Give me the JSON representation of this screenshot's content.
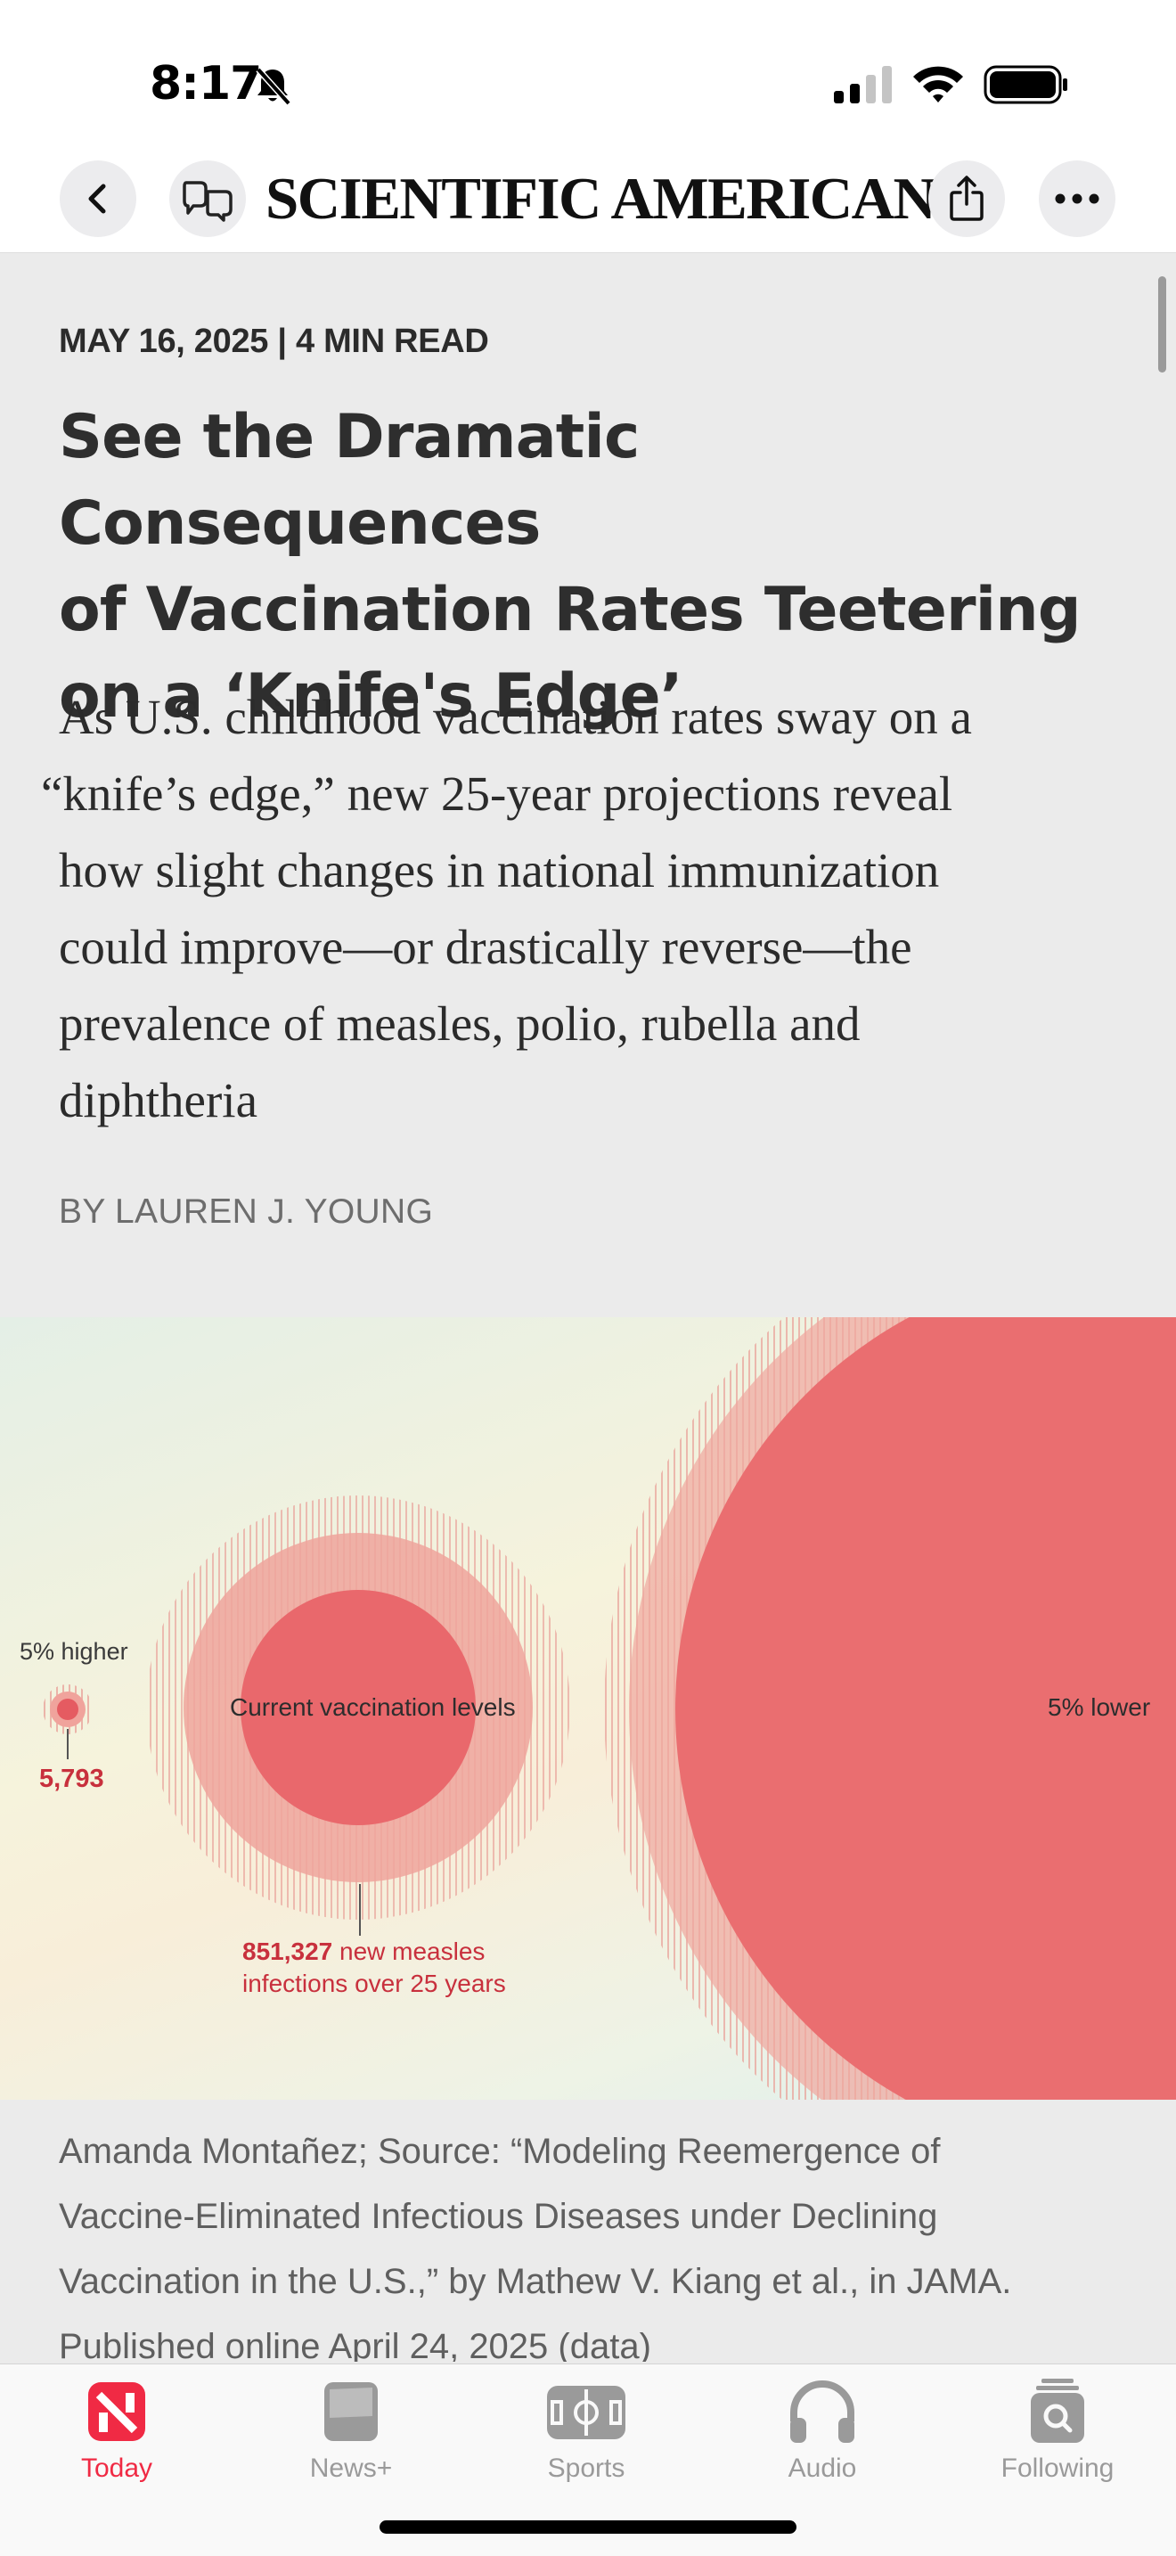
{
  "status_bar": {
    "time": "8:17",
    "icons": [
      "bell-slash-icon",
      "cellular-signal-icon",
      "wifi-icon",
      "battery-icon"
    ]
  },
  "navbar": {
    "publication": "SCIENTIFIC AMERICAN",
    "buttons": [
      "back-icon",
      "reader-mode-icon",
      "share-icon",
      "more-icon"
    ]
  },
  "article": {
    "meta": "MAY 16, 2025 | 4 MIN READ",
    "headline_lines": [
      "See the Dramatic Consequences",
      "of Vaccination Rates Teetering",
      "on a ‘Knife's Edge’"
    ],
    "dek_lines": [
      "As U.S. childhood vaccination rates sway on a",
      "“knife’s edge,” new 25-year projections reveal",
      "how slight changes in national immunization",
      "could improve—or drastically reverse—the",
      "prevalence of measles, polio, rubella and",
      "diphtheria"
    ],
    "byline": "BY LAUREN J. YOUNG"
  },
  "chart_data": {
    "type": "bubble",
    "categories": [
      "5% higher",
      "Current vaccination levels",
      "5% lower"
    ],
    "values": [
      5793,
      851327,
      null
    ],
    "labels": {
      "higher": "5% higher",
      "higher_value": "5,793",
      "current": "Current vaccination levels",
      "current_value": "851,327",
      "current_note_line1": "new measles",
      "current_note_line2": "infections over 25 years",
      "lower": "5% lower"
    },
    "colors": {
      "bubble": "#ea6e70",
      "ring": "#f0a39c",
      "accent": "#c8303d"
    }
  },
  "caption_lines": [
    "Amanda Montañez; Source: “Modeling Reemergence of",
    "Vaccine-Eliminated Infectious Diseases under Declining",
    "Vaccination in the U.S.,” by Mathew V. Kiang et al., in JAMA.",
    "Published online April 24, 2025 (data)"
  ],
  "tabbar": {
    "tabs": [
      {
        "label": "Today",
        "icon": "news-logo-icon",
        "active": true
      },
      {
        "label": "News+",
        "icon": "news-plus-icon",
        "active": false
      },
      {
        "label": "Sports",
        "icon": "sports-field-icon",
        "active": false
      },
      {
        "label": "Audio",
        "icon": "headphones-icon",
        "active": false
      },
      {
        "label": "Following",
        "icon": "following-search-icon",
        "active": false
      }
    ],
    "active_color": "#f02a44",
    "inactive_color": "#9a9a9a"
  }
}
